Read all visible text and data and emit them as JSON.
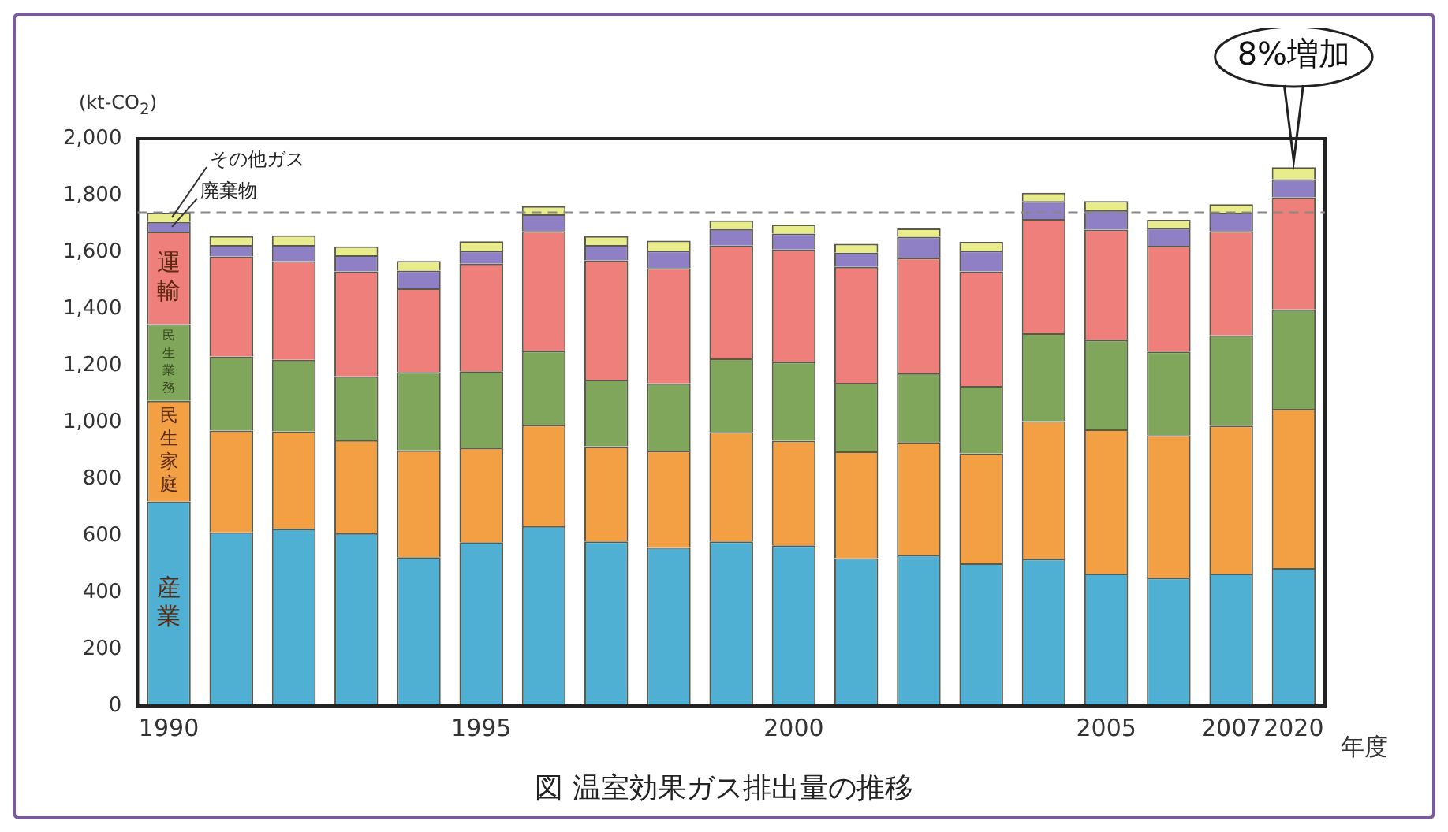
{
  "chart_data": {
    "type": "bar",
    "stacked": true,
    "title": "図 温室効果ガス排出量の推移",
    "ylabel": "(kt-CO$_{2}$)",
    "xlabel": "年度",
    "categories": [
      "1990",
      null,
      null,
      null,
      null,
      "1995",
      null,
      null,
      null,
      null,
      "2000",
      null,
      null,
      null,
      null,
      "2005",
      null,
      "2007",
      "2020"
    ],
    "series": [
      {
        "name": "産業",
        "color": "#4fb0d3",
        "values": [
          721,
          612,
          625,
          609,
          524,
          577,
          634,
          580,
          559,
          580,
          566,
          521,
          532,
          503,
          519,
          467,
          452,
          467,
          486
        ]
      },
      {
        "name": "民生家庭",
        "color": "#f2a043",
        "values": [
          355,
          359,
          343,
          328,
          377,
          333,
          357,
          335,
          340,
          386,
          369,
          376,
          398,
          387,
          485,
          508,
          503,
          521,
          561
        ]
      },
      {
        "name": "民生業務",
        "color": "#7fa65a",
        "values": [
          270,
          261,
          252,
          225,
          276,
          270,
          261,
          235,
          238,
          259,
          278,
          242,
          243,
          238,
          310,
          315,
          294,
          318,
          351
        ]
      },
      {
        "name": "運輸",
        "color": "#ef7f7b",
        "values": [
          326,
          353,
          348,
          370,
          295,
          379,
          422,
          421,
          407,
          398,
          396,
          409,
          407,
          404,
          403,
          389,
          373,
          368,
          395
        ]
      },
      {
        "name": "廃棄物",
        "color": "#8f7fc4",
        "values": [
          34,
          40,
          57,
          57,
          63,
          45,
          59,
          54,
          61,
          58,
          56,
          50,
          74,
          73,
          63,
          69,
          63,
          65,
          64
        ]
      },
      {
        "name": "その他ガス",
        "color": "#e8ec8a",
        "values": [
          33,
          31,
          34,
          31,
          34,
          34,
          29,
          31,
          35,
          31,
          32,
          31,
          29,
          31,
          29,
          32,
          29,
          30,
          42
        ]
      }
    ],
    "ylim": [
      0,
      2000
    ],
    "yticks": [
      0,
      200,
      400,
      600,
      800,
      {
        "value": 1000,
        "label": "1,000"
      },
      {
        "value": 1200,
        "label": "1,200"
      },
      {
        "value": 1400,
        "label": "1,400"
      },
      {
        "value": 1600,
        "label": "1,600"
      },
      {
        "value": 1800,
        "label": "1,800"
      },
      {
        "value": 2000,
        "label": "2,000"
      }
    ],
    "ref_lines": [
      {
        "axis": "y",
        "value": 1740,
        "color": "#888888",
        "line_style": "dashed"
      }
    ],
    "annotations": [
      {
        "text": "8%増加",
        "x": "2020",
        "y": 1899
      }
    ],
    "legend": false,
    "grid": false
  }
}
